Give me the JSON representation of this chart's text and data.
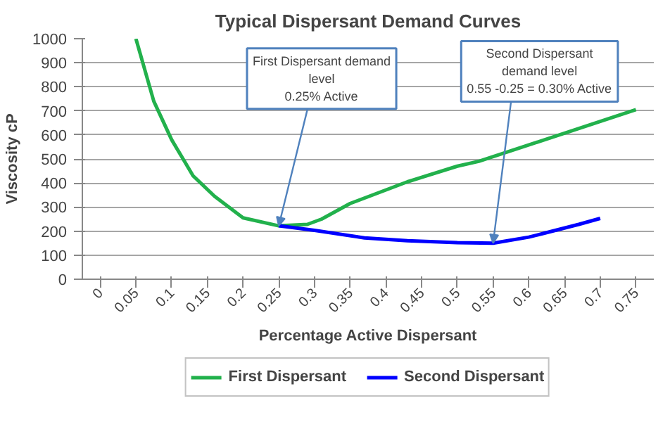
{
  "chart_data": {
    "type": "line",
    "title": "Typical Dispersant Demand Curves",
    "xlabel": "Percentage Active Dispersant",
    "ylabel": "Viscosity cP",
    "xlim": [
      -0.025,
      0.775
    ],
    "xticks": [
      0,
      0.05,
      0.1,
      0.15,
      0.2,
      0.25,
      0.3,
      0.35,
      0.4,
      0.45,
      0.5,
      0.55,
      0.6,
      0.65,
      0.7,
      0.75
    ],
    "ylim": [
      0,
      1000
    ],
    "yticks": [
      0,
      100,
      200,
      300,
      400,
      500,
      600,
      700,
      800,
      900,
      1000
    ],
    "grid": "y",
    "legend": "bottom",
    "line_style": "solid",
    "series": [
      {
        "name": "First Dispersant",
        "color": "#22b14c",
        "x": [
          0.05,
          0.075,
          0.1,
          0.13,
          0.16,
          0.2,
          0.25,
          0.29,
          0.31,
          0.35,
          0.43,
          0.5,
          0.53,
          0.75
        ],
        "values": [
          1000,
          740,
          580,
          430,
          345,
          255,
          222,
          228,
          250,
          315,
          405,
          470,
          490,
          705
        ]
      },
      {
        "name": "Second Dispersant",
        "color": "#0000ff",
        "x": [
          0.25,
          0.3,
          0.37,
          0.43,
          0.5,
          0.55,
          0.6,
          0.62,
          0.67,
          0.7
        ],
        "values": [
          222,
          203,
          172,
          160,
          152,
          150,
          175,
          190,
          228,
          253
        ]
      }
    ],
    "annotations": [
      {
        "text": "First Dispersant demand\nlevel\n0.25% Active",
        "x": 0.25,
        "y": 222
      },
      {
        "text": "Second Dispersant\ndemand level\n0.55 -0.25 = 0.30% Active",
        "x": 0.55,
        "y": 150
      }
    ]
  }
}
